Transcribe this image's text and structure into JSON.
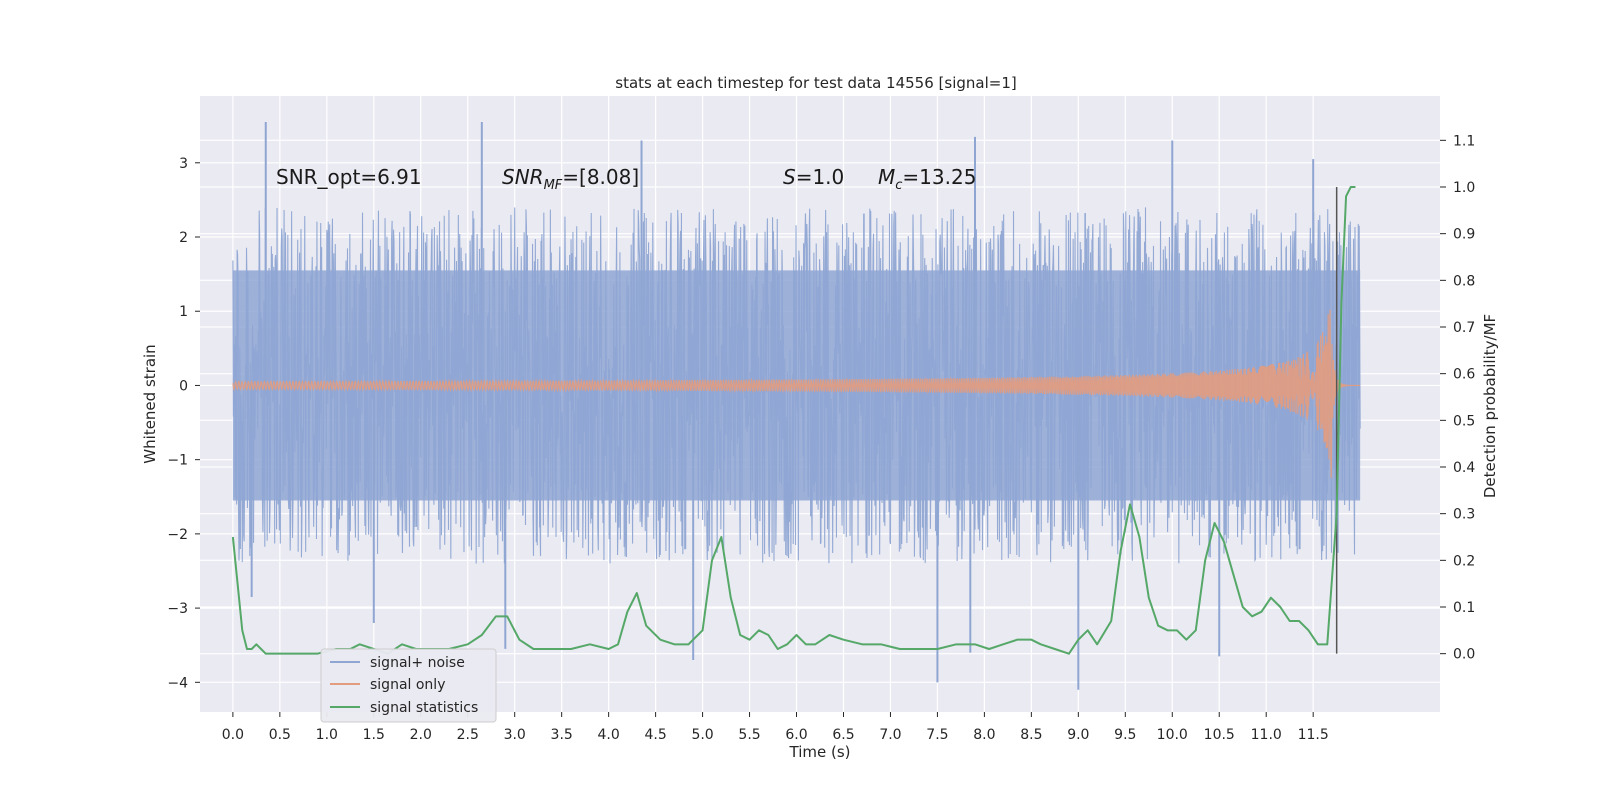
{
  "chart_data": {
    "type": "line",
    "title": "stats at each timestep for test data 14556 [signal=1]",
    "xlabel": "Time (s)",
    "ylabel": "Whitened strain",
    "y2label": "Detection probability/MF",
    "xlim": [
      -0.35,
      12.85
    ],
    "ylim": [
      -4.4,
      3.9
    ],
    "y2lim": [
      -0.125,
      1.195
    ],
    "xticks": [
      "0.0",
      "0.5",
      "1.0",
      "1.5",
      "2.0",
      "2.5",
      "3.0",
      "3.5",
      "4.0",
      "4.5",
      "5.0",
      "5.5",
      "6.0",
      "6.5",
      "7.0",
      "7.5",
      "8.0",
      "8.5",
      "9.0",
      "9.5",
      "10.0",
      "10.5",
      "11.0",
      "11.5"
    ],
    "yticks": [
      "3",
      "2",
      "1",
      "0",
      "−1",
      "−2",
      "−3",
      "−4"
    ],
    "y2ticks": [
      "1.1",
      "1.0",
      "0.9",
      "0.8",
      "0.7",
      "0.6",
      "0.5",
      "0.4",
      "0.3",
      "0.2",
      "0.1",
      "0.0"
    ],
    "grid": true,
    "legend_position": "lower-left",
    "vertical_marker_x": 11.75,
    "annotations": {
      "snr_opt": "SNR_opt=6.91",
      "snr_mf_main": "SNR",
      "snr_mf_sub": "MF",
      "snr_mf_value": "=[8.08]",
      "s_main": "S",
      "s_value": "=1.0",
      "mc_main": "M",
      "mc_sub": "c",
      "mc_value": "=13.25"
    },
    "series": [
      {
        "name": "signal+ noise",
        "color": "#8fa6d3",
        "axis": "left",
        "kind": "noise",
        "x_range": [
          0.0,
          12.0
        ],
        "envelope_typical": 1.55,
        "peaks": [
          [
            0.35,
            3.55
          ],
          [
            2.65,
            3.55
          ],
          [
            4.35,
            3.3
          ],
          [
            7.9,
            3.35
          ],
          [
            10.0,
            3.3
          ],
          [
            11.5,
            3.05
          ],
          [
            7.5,
            -4.0
          ],
          [
            9.0,
            -4.1
          ],
          [
            2.9,
            -3.55
          ],
          [
            4.9,
            -3.7
          ],
          [
            7.85,
            -3.6
          ],
          [
            10.5,
            -3.65
          ],
          [
            0.2,
            -2.85
          ],
          [
            1.5,
            -3.2
          ]
        ]
      },
      {
        "name": "signal only",
        "color": "#e39c7e",
        "axis": "left",
        "kind": "chirp",
        "x_range": [
          0.0,
          12.0
        ],
        "merger_x": 11.7,
        "peak_amplitude": 1.4
      },
      {
        "name": "signal statistics",
        "color": "#55a868",
        "axis": "right",
        "x": [
          0.0,
          0.05,
          0.1,
          0.15,
          0.2,
          0.25,
          0.3,
          0.35,
          0.45,
          0.55,
          0.7,
          0.9,
          1.1,
          1.25,
          1.35,
          1.5,
          1.65,
          1.8,
          1.95,
          2.1,
          2.3,
          2.5,
          2.65,
          2.8,
          2.92,
          3.05,
          3.2,
          3.4,
          3.6,
          3.8,
          4.0,
          4.1,
          4.2,
          4.3,
          4.4,
          4.55,
          4.7,
          4.85,
          5.0,
          5.1,
          5.2,
          5.3,
          5.4,
          5.5,
          5.6,
          5.7,
          5.8,
          5.9,
          6.0,
          6.1,
          6.2,
          6.35,
          6.5,
          6.7,
          6.9,
          7.1,
          7.3,
          7.5,
          7.7,
          7.9,
          8.05,
          8.2,
          8.35,
          8.5,
          8.6,
          8.75,
          8.9,
          9.0,
          9.1,
          9.2,
          9.35,
          9.45,
          9.55,
          9.65,
          9.75,
          9.85,
          9.95,
          10.05,
          10.15,
          10.25,
          10.35,
          10.45,
          10.55,
          10.65,
          10.75,
          10.85,
          10.95,
          11.05,
          11.15,
          11.25,
          11.35,
          11.45,
          11.55,
          11.65,
          11.75,
          11.8,
          11.85,
          11.9,
          11.95
        ],
        "y": [
          0.25,
          0.15,
          0.05,
          0.01,
          0.01,
          0.02,
          0.01,
          0.0,
          0.0,
          0.0,
          0.0,
          0.0,
          0.01,
          0.01,
          0.02,
          0.01,
          0.0,
          0.02,
          0.01,
          0.01,
          0.01,
          0.02,
          0.04,
          0.08,
          0.08,
          0.03,
          0.01,
          0.01,
          0.01,
          0.02,
          0.01,
          0.02,
          0.09,
          0.13,
          0.06,
          0.03,
          0.02,
          0.02,
          0.05,
          0.2,
          0.25,
          0.12,
          0.04,
          0.03,
          0.05,
          0.04,
          0.01,
          0.02,
          0.04,
          0.02,
          0.02,
          0.04,
          0.03,
          0.02,
          0.02,
          0.01,
          0.01,
          0.01,
          0.02,
          0.02,
          0.01,
          0.02,
          0.03,
          0.03,
          0.02,
          0.01,
          0.0,
          0.03,
          0.05,
          0.02,
          0.07,
          0.22,
          0.32,
          0.25,
          0.12,
          0.06,
          0.05,
          0.05,
          0.03,
          0.05,
          0.2,
          0.28,
          0.24,
          0.17,
          0.1,
          0.08,
          0.09,
          0.12,
          0.1,
          0.07,
          0.07,
          0.05,
          0.02,
          0.02,
          0.3,
          0.75,
          0.98,
          1.0,
          1.0
        ]
      }
    ]
  }
}
